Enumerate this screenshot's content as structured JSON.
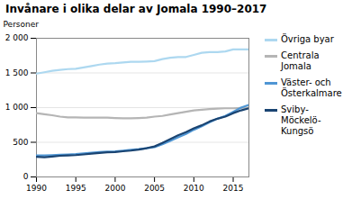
{
  "chart_data": {
    "type": "line",
    "title": "Invånare i olika delar av Jomala 1990–2017",
    "ylabel": "Personer",
    "x": [
      1990,
      1991,
      1992,
      1993,
      1994,
      1995,
      1996,
      1997,
      1998,
      1999,
      2000,
      2001,
      2002,
      2003,
      2004,
      2005,
      2006,
      2007,
      2008,
      2009,
      2010,
      2011,
      2012,
      2013,
      2014,
      2015,
      2016,
      2017
    ],
    "series": [
      {
        "name": "Övriga byar",
        "color": "#add8f0",
        "values": [
          1490,
          1510,
          1530,
          1545,
          1555,
          1560,
          1580,
          1600,
          1620,
          1635,
          1640,
          1650,
          1660,
          1660,
          1665,
          1670,
          1700,
          1720,
          1730,
          1730,
          1760,
          1790,
          1800,
          1800,
          1810,
          1840,
          1840,
          1840
        ]
      },
      {
        "name": "Centrala\nJomala",
        "color": "#b5b5b5",
        "values": [
          920,
          905,
          890,
          870,
          860,
          860,
          855,
          855,
          855,
          855,
          850,
          845,
          845,
          850,
          855,
          870,
          880,
          900,
          920,
          940,
          960,
          970,
          980,
          985,
          990,
          990,
          995,
          1000
        ]
      },
      {
        "name": "Väster- och\nÖsterkalmare",
        "color": "#4f96d4",
        "values": [
          310,
          310,
          315,
          320,
          325,
          330,
          340,
          350,
          360,
          365,
          370,
          380,
          390,
          400,
          415,
          430,
          470,
          520,
          570,
          620,
          680,
          730,
          790,
          840,
          880,
          940,
          1000,
          1040
        ]
      },
      {
        "name": "Sviby-\nMöckelö-\nKungsö",
        "color": "#1a4472",
        "values": [
          290,
          285,
          295,
          305,
          310,
          315,
          325,
          335,
          345,
          355,
          360,
          370,
          380,
          395,
          415,
          440,
          490,
          545,
          600,
          645,
          700,
          745,
          800,
          840,
          870,
          920,
          960,
          990
        ]
      }
    ],
    "xlim": [
      1990,
      2017
    ],
    "xticks": [
      1990,
      1995,
      2000,
      2005,
      2010,
      2015
    ],
    "ylim": [
      0,
      2000
    ],
    "yticks": [
      0,
      500,
      {
        "value": 1000,
        "label": "1 000"
      },
      {
        "value": 1500,
        "label": "1 500"
      },
      {
        "value": 2000,
        "label": "2 000"
      }
    ],
    "grid": true,
    "legend": "right"
  }
}
